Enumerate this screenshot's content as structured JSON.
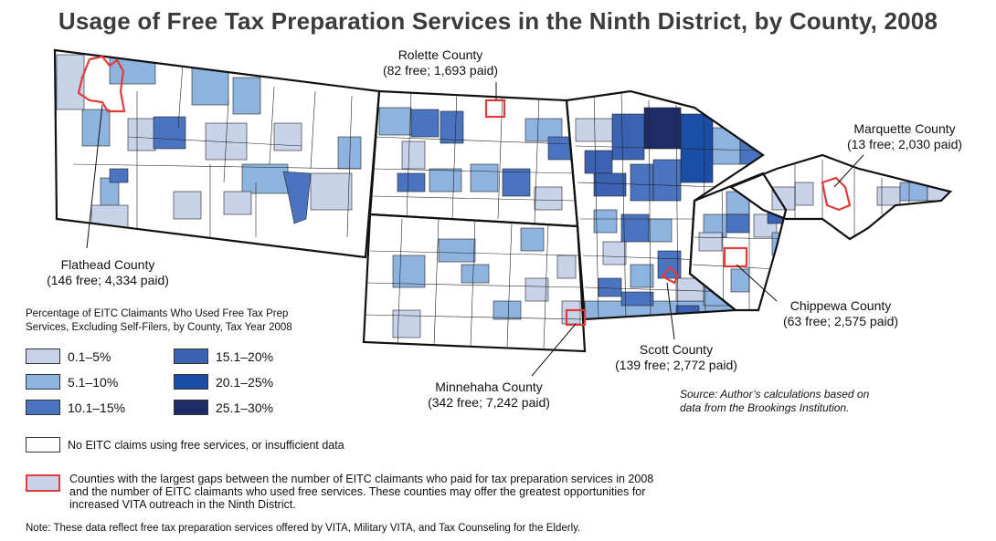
{
  "title": "Usage of Free Tax Preparation Services in the Ninth District, by County, 2008",
  "colors": {
    "c1": "#c8d3ea",
    "c2": "#8fb3df",
    "c3": "#4a74c0",
    "c4": "#3c63b3",
    "c5": "#1b4fa6",
    "c6": "#1d2b66",
    "white": "#ffffff",
    "highlight": "#e03a3a"
  },
  "callouts": {
    "rolette": {
      "name": "Rolette County",
      "detail": "(82 free; 1,693 paid)"
    },
    "marquette": {
      "name": "Marquette County",
      "detail": "(13 free; 2,030 paid)"
    },
    "flathead": {
      "name": "Flathead County",
      "detail": "(146 free; 4,334 paid)"
    },
    "chippewa": {
      "name": "Chippewa County",
      "detail": "(63 free; 2,575 paid)"
    },
    "scott": {
      "name": "Scott County",
      "detail": "(139 free; 2,772 paid)"
    },
    "minnehaha": {
      "name": "Minnehaha County",
      "detail": "(342 free; 7,242 paid)"
    }
  },
  "legend": {
    "title": "Percentage of EITC Claimants Who Used Free Tax Prep Services, Excluding Self-Filers, by County, Tax Year 2008",
    "items": [
      {
        "label": "0.1–5%",
        "color_key": "c1"
      },
      {
        "label": "5.1–10%",
        "color_key": "c2"
      },
      {
        "label": "10.1–15%",
        "color_key": "c3"
      },
      {
        "label": "15.1–20%",
        "color_key": "c4"
      },
      {
        "label": "20.1–25%",
        "color_key": "c5"
      },
      {
        "label": "25.1–30%",
        "color_key": "c6"
      }
    ],
    "no_data": "No EITC claims using free services, or insufficient data",
    "gap": "Counties with the largest gaps between the number of EITC claimants who paid for tax preparation services in 2008 and the number of EITC claimants who used free services. These counties may offer the greatest opportunities for increased VITA outreach in the Ninth District."
  },
  "source": "Source: Author’s calculations based on data from the Brookings Institution.",
  "note": "Note: These data reflect free tax preparation services offered by VITA, Military VITA, and Tax Counseling for the Elderly."
}
